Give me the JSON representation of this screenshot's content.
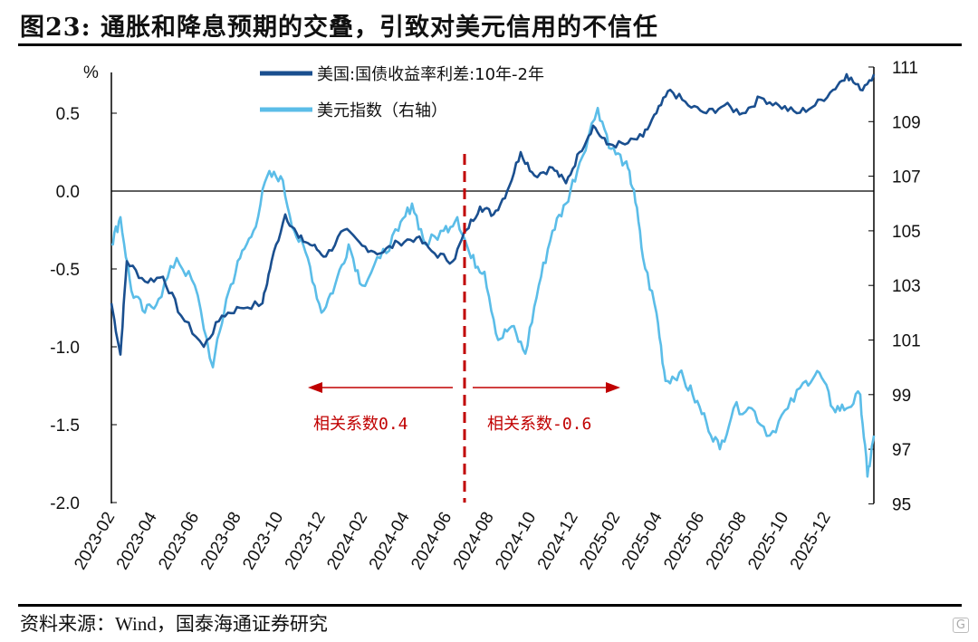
{
  "title": "图23: 通胀和降息预期的交叠，引致对美元信用的不信任",
  "source": "资料来源：Wind，国泰海通证券研究",
  "watermark": "格隆汇",
  "colors": {
    "spread": "#1a4f8f",
    "dxy": "#5bbde8",
    "annotation": "#c00000"
  },
  "chart_data": {
    "type": "line",
    "title": "通胀和降息预期的交叠，引致对美元信用的不信任",
    "x_unit": "months since 2023-02",
    "x_tick_labels": [
      "2023-02",
      "2023-04",
      "2023-06",
      "2023-08",
      "2023-10",
      "2023-12",
      "2024-02",
      "2024-04",
      "2024-06",
      "2024-08",
      "2024-10",
      "2024-12",
      "2025-02",
      "2025-04",
      "2025-06",
      "2025-08",
      "2025-10",
      "2025-12"
    ],
    "xlim": [
      0,
      36.3
    ],
    "left_axis": {
      "label": "%",
      "ylim": [
        -2.0,
        0.8
      ],
      "ticks": [
        "0.5",
        "0.0",
        "-0.5",
        "-1.0",
        "-1.5",
        "-2.0"
      ],
      "tick_values": [
        0.5,
        0,
        -0.5,
        -1.0,
        -1.5,
        -2.0
      ]
    },
    "right_axis": {
      "ylim": [
        95,
        111.2
      ],
      "ticks": [
        "111",
        "109",
        "107",
        "105",
        "103",
        "101",
        "99",
        "97",
        "95"
      ],
      "tick_values": [
        111,
        109,
        107,
        105,
        103,
        101,
        99,
        97,
        95
      ]
    },
    "legend_position": "top-center",
    "series": [
      {
        "name": "美国:国债收益率利差:10年-2年",
        "axis": "left",
        "x": [
          0,
          0.43,
          0.73,
          1.59,
          2.45,
          3.31,
          4.39,
          5.25,
          6.11,
          7.18,
          7.61,
          8.26,
          8.9,
          9.55,
          10.19,
          11.05,
          11.91,
          12.77,
          13.63,
          14.49,
          15.35,
          16.22,
          16.86,
          17.51,
          18.15,
          18.8,
          19.44,
          20.09,
          20.95,
          21.59,
          22.24,
          22.88,
          23.53,
          24.39,
          25.25,
          25.89,
          26.54,
          27.4,
          28.26,
          29.12,
          29.98,
          30.84,
          31.7,
          32.56,
          33.42,
          34.28,
          34.92,
          35.57,
          36.22
        ],
        "values": [
          -0.72,
          -1.05,
          -0.45,
          -0.58,
          -0.55,
          -0.8,
          -1.0,
          -0.8,
          -0.75,
          -0.72,
          -0.45,
          -0.15,
          -0.3,
          -0.35,
          -0.42,
          -0.25,
          -0.35,
          -0.4,
          -0.33,
          -0.3,
          -0.4,
          -0.45,
          -0.25,
          -0.1,
          -0.15,
          0.0,
          0.25,
          0.1,
          0.15,
          0.05,
          0.25,
          0.42,
          0.3,
          0.3,
          0.35,
          0.5,
          0.65,
          0.55,
          0.5,
          0.55,
          0.5,
          0.6,
          0.55,
          0.5,
          0.55,
          0.65,
          0.75,
          0.65,
          0.75
        ]
      },
      {
        "name": "美元指数（右轴）",
        "axis": "right",
        "x": [
          0,
          0.43,
          0.95,
          1.59,
          2.24,
          3.1,
          3.96,
          4.82,
          5.46,
          6.11,
          6.75,
          7.4,
          8.04,
          8.69,
          9.33,
          9.98,
          10.62,
          11.27,
          11.91,
          12.77,
          13.63,
          14.28,
          14.92,
          15.78,
          16.43,
          17.08,
          17.72,
          18.37,
          19.01,
          19.66,
          20.3,
          20.95,
          21.59,
          22.24,
          23.1,
          23.74,
          24.39,
          24.82,
          25.25,
          25.89,
          26.32,
          26.97,
          27.61,
          28.26,
          28.9,
          29.55,
          30.41,
          31.27,
          32.13,
          32.99,
          33.63,
          34.28,
          34.92,
          35.57,
          35.91,
          36.22
        ],
        "values": [
          104.5,
          105.5,
          102.8,
          102,
          102.5,
          104,
          103,
          100,
          102.5,
          104,
          105,
          107,
          107,
          105,
          104,
          102,
          103,
          104.5,
          103,
          104,
          105,
          106,
          104.5,
          105,
          105.5,
          104,
          103.5,
          101,
          101.5,
          100.5,
          103,
          105,
          106,
          107.5,
          109.5,
          108,
          107.5,
          106.5,
          104,
          102,
          99.5,
          99.8,
          99,
          98,
          97,
          98.5,
          98.5,
          97.5,
          98.5,
          99.5,
          99.8,
          98.5,
          98.5,
          99,
          96,
          97.5
        ]
      }
    ],
    "annotations": {
      "split": "2024-07",
      "left_label": "相关系数0.4",
      "right_label": "相关系数-0.6"
    }
  }
}
